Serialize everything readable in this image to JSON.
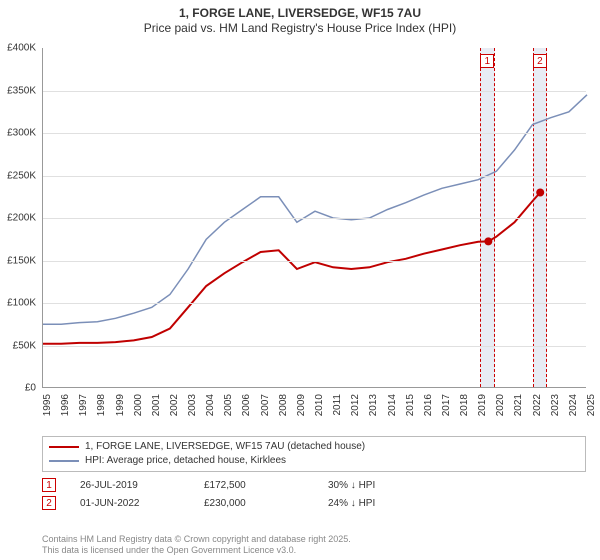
{
  "title": {
    "line1": "1, FORGE LANE, LIVERSEDGE, WF15 7AU",
    "line2": "Price paid vs. HM Land Registry's House Price Index (HPI)"
  },
  "chart": {
    "type": "line",
    "background_color": "#ffffff",
    "grid_color": "#e0e0e0",
    "x": {
      "min": 1995,
      "max": 2025,
      "ticks": [
        1995,
        1996,
        1997,
        1998,
        1999,
        2000,
        2001,
        2002,
        2003,
        2004,
        2005,
        2006,
        2007,
        2008,
        2009,
        2010,
        2011,
        2012,
        2013,
        2014,
        2015,
        2016,
        2017,
        2018,
        2019,
        2020,
        2021,
        2022,
        2023,
        2024,
        2025
      ]
    },
    "y": {
      "min": 0,
      "max": 400000,
      "ticks": [
        0,
        50000,
        100000,
        150000,
        200000,
        250000,
        300000,
        350000,
        400000
      ],
      "tick_labels": [
        "£0",
        "£50K",
        "£100K",
        "£150K",
        "£200K",
        "£250K",
        "£300K",
        "£350K",
        "£400K"
      ]
    },
    "marker_bands": [
      {
        "id": "1",
        "x": 2019.5,
        "width_years": 0.8
      },
      {
        "id": "2",
        "x": 2022.4,
        "width_years": 0.8
      }
    ],
    "series": [
      {
        "name": "price_paid",
        "label": "1, FORGE LANE, LIVERSEDGE, WF15 7AU (detached house)",
        "color": "#c00000",
        "line_width": 2,
        "points": [
          [
            1995,
            52000
          ],
          [
            1996,
            52000
          ],
          [
            1997,
            53000
          ],
          [
            1998,
            53000
          ],
          [
            1999,
            54000
          ],
          [
            2000,
            56000
          ],
          [
            2001,
            60000
          ],
          [
            2002,
            70000
          ],
          [
            2003,
            95000
          ],
          [
            2004,
            120000
          ],
          [
            2005,
            135000
          ],
          [
            2006,
            148000
          ],
          [
            2007,
            160000
          ],
          [
            2008,
            162000
          ],
          [
            2009,
            140000
          ],
          [
            2010,
            148000
          ],
          [
            2011,
            142000
          ],
          [
            2012,
            140000
          ],
          [
            2013,
            142000
          ],
          [
            2014,
            148000
          ],
          [
            2015,
            152000
          ],
          [
            2016,
            158000
          ],
          [
            2017,
            163000
          ],
          [
            2018,
            168000
          ],
          [
            2019,
            172000
          ],
          [
            2019.56,
            172500
          ],
          [
            2020,
            178000
          ],
          [
            2021,
            195000
          ],
          [
            2022,
            220000
          ],
          [
            2022.42,
            230000
          ]
        ],
        "markers": [
          {
            "x": 2019.56,
            "y": 172500
          },
          {
            "x": 2022.42,
            "y": 230000
          }
        ]
      },
      {
        "name": "hpi",
        "label": "HPI: Average price, detached house, Kirklees",
        "color": "#7b8fb8",
        "line_width": 1.5,
        "points": [
          [
            1995,
            75000
          ],
          [
            1996,
            75000
          ],
          [
            1997,
            77000
          ],
          [
            1998,
            78000
          ],
          [
            1999,
            82000
          ],
          [
            2000,
            88000
          ],
          [
            2001,
            95000
          ],
          [
            2002,
            110000
          ],
          [
            2003,
            140000
          ],
          [
            2004,
            175000
          ],
          [
            2005,
            195000
          ],
          [
            2006,
            210000
          ],
          [
            2007,
            225000
          ],
          [
            2008,
            225000
          ],
          [
            2009,
            195000
          ],
          [
            2010,
            208000
          ],
          [
            2011,
            200000
          ],
          [
            2012,
            198000
          ],
          [
            2013,
            200000
          ],
          [
            2014,
            210000
          ],
          [
            2015,
            218000
          ],
          [
            2016,
            227000
          ],
          [
            2017,
            235000
          ],
          [
            2018,
            240000
          ],
          [
            2019,
            245000
          ],
          [
            2020,
            255000
          ],
          [
            2021,
            280000
          ],
          [
            2022,
            310000
          ],
          [
            2023,
            318000
          ],
          [
            2024,
            325000
          ],
          [
            2025,
            345000
          ]
        ]
      }
    ]
  },
  "legend": {
    "rows": [
      {
        "color": "#c00000",
        "label": "1, FORGE LANE, LIVERSEDGE, WF15 7AU (detached house)"
      },
      {
        "color": "#7b8fb8",
        "label": "HPI: Average price, detached house, Kirklees"
      }
    ]
  },
  "data_points": [
    {
      "id": "1",
      "date": "26-JUL-2019",
      "price": "£172,500",
      "diff": "30% ↓ HPI"
    },
    {
      "id": "2",
      "date": "01-JUN-2022",
      "price": "£230,000",
      "diff": "24% ↓ HPI"
    }
  ],
  "footer": {
    "line1": "Contains HM Land Registry data © Crown copyright and database right 2025.",
    "line2": "This data is licensed under the Open Government Licence v3.0."
  }
}
